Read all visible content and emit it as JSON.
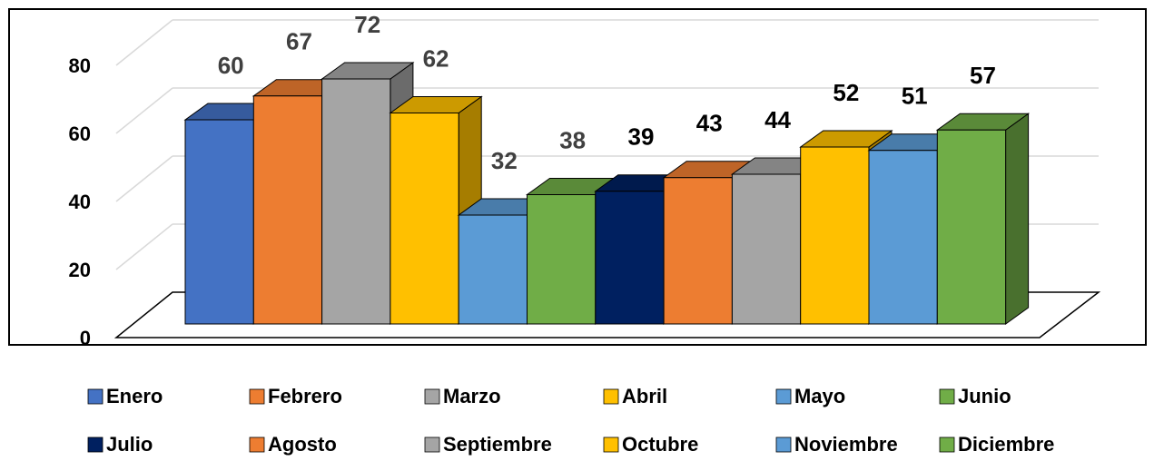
{
  "chart_data": {
    "type": "bar3d",
    "categories": [
      "Enero",
      "Febrero",
      "Marzo",
      "Abril",
      "Mayo",
      "Junio",
      "Julio",
      "Agosto",
      "Septiembre",
      "Octubre",
      "Noviembre",
      "Diciembre"
    ],
    "values": [
      60,
      67,
      72,
      62,
      32,
      38,
      39,
      43,
      44,
      52,
      51,
      57
    ],
    "colors": [
      "#4472c4",
      "#ed7d31",
      "#a5a5a5",
      "#ffc000",
      "#5b9bd5",
      "#70ad47",
      "#002060",
      "#ed7d31",
      "#a5a5a5",
      "#ffc000",
      "#5b9bd5",
      "#70ad47"
    ],
    "ylim": [
      0,
      80
    ],
    "yticks": [
      0,
      20,
      40,
      60,
      80
    ],
    "grid": true,
    "legend": "bottom"
  }
}
